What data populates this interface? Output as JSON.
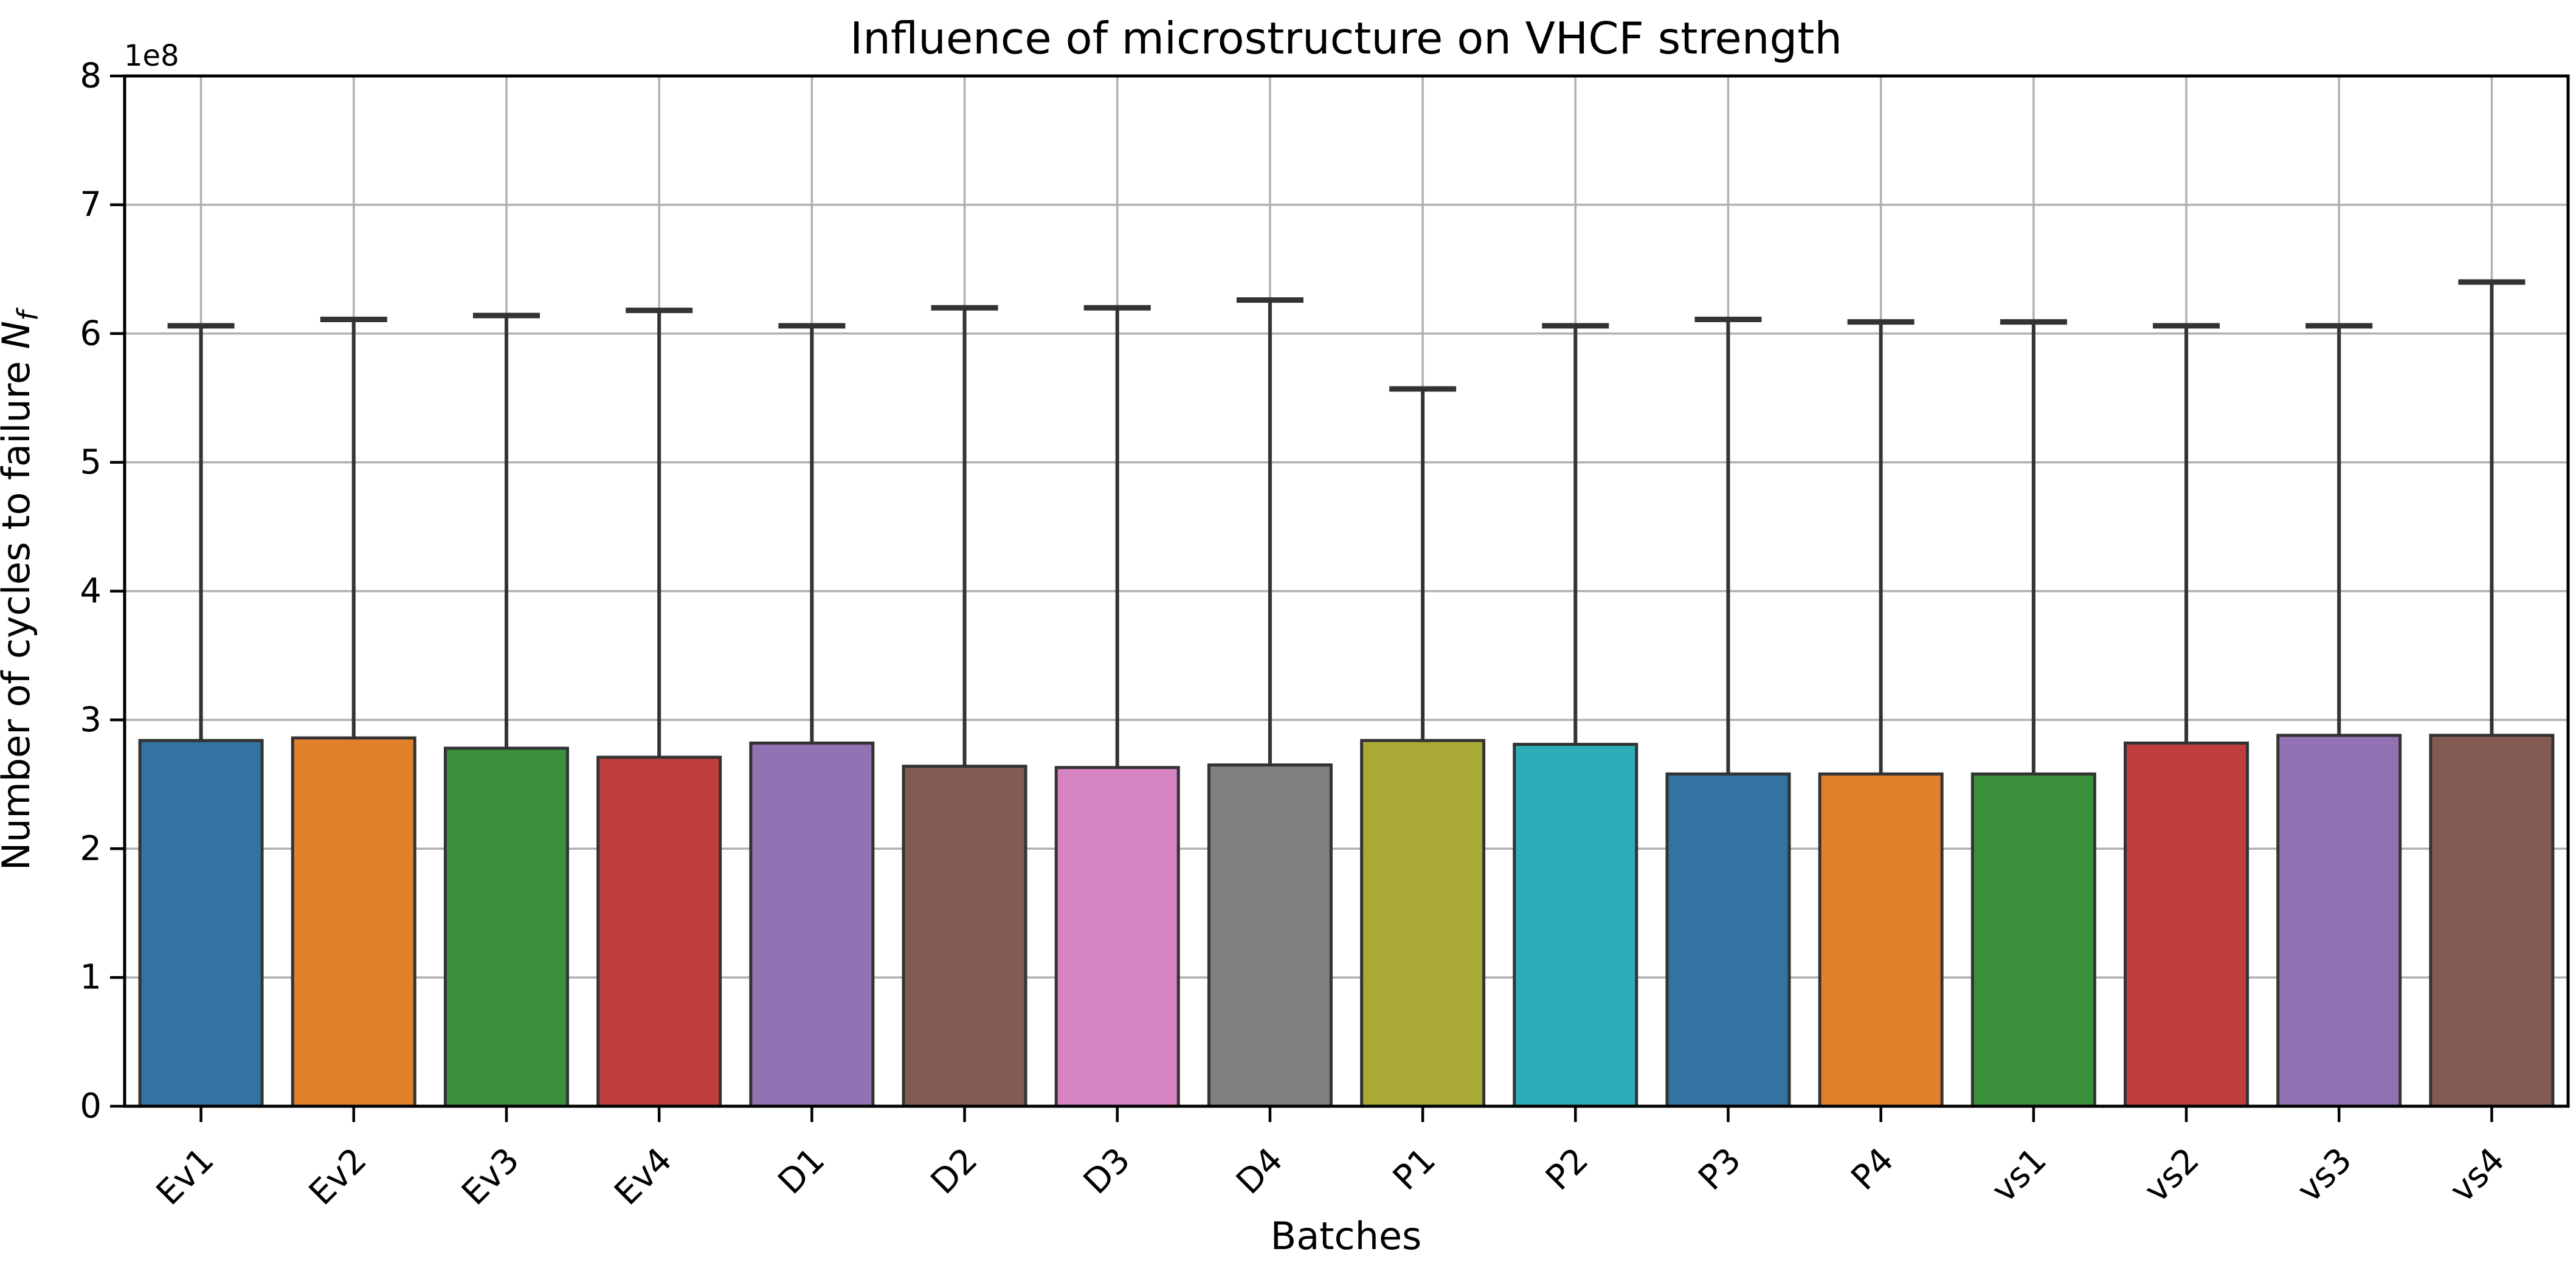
{
  "figure": {
    "background": "#ffffff"
  },
  "chart_data": {
    "type": "bar",
    "title": "Influence of microstructure on VHCF strength",
    "xlabel": "Batches",
    "ylabel": "Number of cycles to failure Nf",
    "ylabel_parts": {
      "prefix": "Number of cycles to failure ",
      "symbol": "N",
      "subscript": "f"
    },
    "y_offset_label": "1e8",
    "unit": "x1e8 cycles",
    "categories": [
      "Ev1",
      "Ev2",
      "Ev3",
      "Ev4",
      "D1",
      "D2",
      "D3",
      "D4",
      "P1",
      "P2",
      "P3",
      "P4",
      "vs1",
      "vs2",
      "vs3",
      "vs4"
    ],
    "values_1e8": [
      2.84,
      2.86,
      2.78,
      2.71,
      2.82,
      2.64,
      2.63,
      2.65,
      2.84,
      2.81,
      2.58,
      2.58,
      2.58,
      2.82,
      2.88,
      2.88
    ],
    "error_top_1e8": [
      6.06,
      6.11,
      6.14,
      6.18,
      6.06,
      6.2,
      6.2,
      6.26,
      5.57,
      6.06,
      6.11,
      6.09,
      6.09,
      6.06,
      6.06,
      6.4
    ],
    "bar_colors": [
      "#3273a1",
      "#e1812c",
      "#3b913b",
      "#c03d3e",
      "#9272b2",
      "#845b53",
      "#d584c1",
      "#7f7f7f",
      "#a9aa35",
      "#2eacb8",
      "#3273a1",
      "#e1812c",
      "#3b913b",
      "#c03d3e",
      "#9272b2",
      "#845b53"
    ],
    "bar_edge_color": "#333333",
    "error_color": "#333333",
    "grid_color": "#b0b0b0",
    "spine_color": "#000000",
    "text_color": "#000000",
    "yticks": [
      0,
      1,
      2,
      3,
      4,
      5,
      6,
      7,
      8
    ],
    "ylim": [
      0,
      8
    ],
    "grid": "both",
    "x_tick_rotation": 45,
    "legend": "none"
  }
}
